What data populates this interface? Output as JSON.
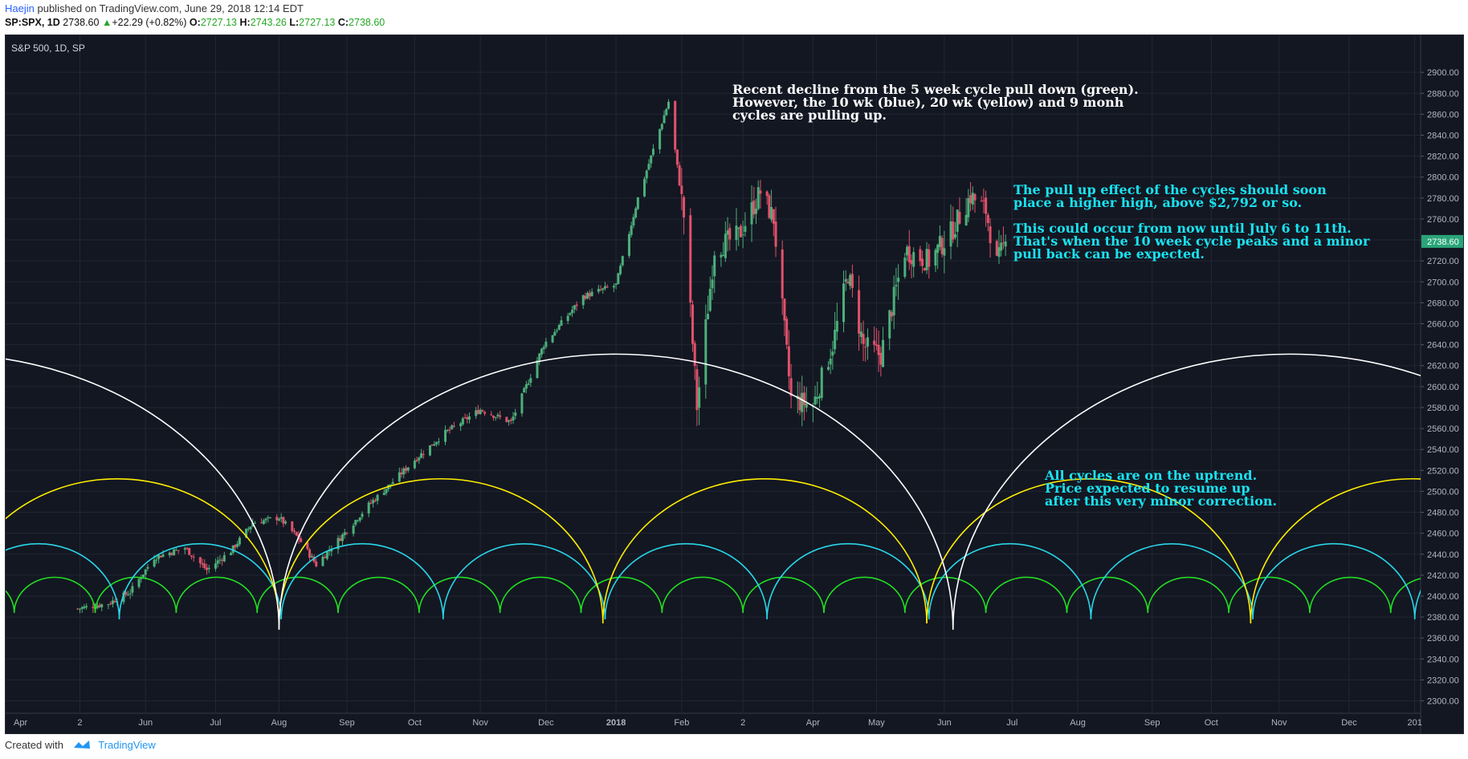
{
  "header": {
    "author": "Haejin",
    "published_text": "published on TradingView.com, June 29, 2018 12:14 EDT",
    "symbol": "SP:SPX, 1D",
    "price": "2738.60",
    "change_arrow": "▲",
    "change": "+22.29 (+0.82%)",
    "o_label": "O:",
    "o_value": "2727.13",
    "h_label": "H:",
    "h_value": "2743.26",
    "l_label": "L:",
    "l_value": "2727.13",
    "c_label": "C:",
    "c_value": "2738.60"
  },
  "legend": "S&P 500, 1D, SP",
  "footer": {
    "created_with": "Created with",
    "brand": "TradingView"
  },
  "annotations": {
    "top": "Recent decline from the 5 week cycle pull down (green).\nHowever, the 10 wk (blue), 20 wk (yellow) and 9 monh\ncycles are pulling up.",
    "middle": "The pull up effect of the cycles should soon\nplace a higher high, above $2,792 or so.\n\nThis could occur from now until July 6 to 11th.\nThat's when the 10 week cycle peaks and a minor\npull back can be expected.",
    "bottom": "All cycles are on the uptrend.\nPrice expected to resume up\nafter this very minor correction."
  },
  "colors": {
    "background": "#131722",
    "up_candle": "#4caf7a",
    "down_candle": "#e0526a",
    "cycle_5wk": "#22dd22",
    "cycle_10wk": "#29d6e8",
    "cycle_20wk": "#ffee00",
    "cycle_9mo": "#ffffff",
    "annotation_white": "#ffffff",
    "annotation_cyan": "#19e2f0",
    "last_price_tag": "#2aa57a"
  },
  "chart_data": {
    "type": "candlestick",
    "title": "S&P 500, 1D, SP",
    "y_axis": {
      "ticks": [
        2300,
        2320,
        2340,
        2360,
        2380,
        2400,
        2420,
        2440,
        2460,
        2480,
        2500,
        2520,
        2540,
        2560,
        2580,
        2600,
        2620,
        2640,
        2660,
        2680,
        2700,
        2720,
        2740,
        2760,
        2780,
        2800,
        2820,
        2840,
        2860,
        2880,
        2900
      ],
      "range": [
        2292,
        2907
      ],
      "last_price_label": "2738.60"
    },
    "x_axis": {
      "ticks": [
        {
          "label": "Apr",
          "index": 0
        },
        {
          "label": "2",
          "index": 1
        },
        {
          "label": "Jun",
          "index": 2
        },
        {
          "label": "Jul",
          "index": 3
        },
        {
          "label": "Aug",
          "index": 4
        },
        {
          "label": "Sep",
          "index": 5
        },
        {
          "label": "Oct",
          "index": 6
        },
        {
          "label": "Nov",
          "index": 7
        },
        {
          "label": "Dec",
          "index": 8
        },
        {
          "label": "2018",
          "index": 9,
          "bold": true
        },
        {
          "label": "Feb",
          "index": 10
        },
        {
          "label": "2",
          "index": 11
        },
        {
          "label": "Apr",
          "index": 12
        },
        {
          "label": "May",
          "index": 13
        },
        {
          "label": "Jun",
          "index": 14
        },
        {
          "label": "Jul",
          "index": 15
        },
        {
          "label": "Aug",
          "index": 16
        },
        {
          "label": "Sep",
          "index": 17
        },
        {
          "label": "Oct",
          "index": 18
        },
        {
          "label": "Nov",
          "index": 19
        },
        {
          "label": "Dec",
          "index": 20
        },
        {
          "label": "201",
          "index": 21
        }
      ]
    },
    "price_path": [
      [
        "2017-05-01",
        2388
      ],
      [
        "2017-05-15",
        2393
      ],
      [
        "2017-05-25",
        2404
      ],
      [
        "2017-06-05",
        2437
      ],
      [
        "2017-06-19",
        2446
      ],
      [
        "2017-06-29",
        2425
      ],
      [
        "2017-07-10",
        2443
      ],
      [
        "2017-07-20",
        2470
      ],
      [
        "2017-08-01",
        2475
      ],
      [
        "2017-08-10",
        2455
      ],
      [
        "2017-08-18",
        2430
      ],
      [
        "2017-08-30",
        2458
      ],
      [
        "2017-09-11",
        2487
      ],
      [
        "2017-09-20",
        2505
      ],
      [
        "2017-10-02",
        2530
      ],
      [
        "2017-10-16",
        2556
      ],
      [
        "2017-11-01",
        2578
      ],
      [
        "2017-11-15",
        2566
      ],
      [
        "2017-11-30",
        2640
      ],
      [
        "2017-12-18",
        2686
      ],
      [
        "2018-01-02",
        2697
      ],
      [
        "2018-01-12",
        2780
      ],
      [
        "2018-01-26",
        2872
      ],
      [
        "2018-02-02",
        2763
      ],
      [
        "2018-02-08",
        2581
      ],
      [
        "2018-02-16",
        2732
      ],
      [
        "2018-02-27",
        2744
      ],
      [
        "2018-03-09",
        2786
      ],
      [
        "2018-03-15",
        2760
      ],
      [
        "2018-03-23",
        2588
      ],
      [
        "2018-04-02",
        2582
      ],
      [
        "2018-04-11",
        2640
      ],
      [
        "2018-04-18",
        2708
      ],
      [
        "2018-04-25",
        2639
      ],
      [
        "2018-05-03",
        2630
      ],
      [
        "2018-05-14",
        2730
      ],
      [
        "2018-05-25",
        2720
      ],
      [
        "2018-06-04",
        2747
      ],
      [
        "2018-06-13",
        2782
      ],
      [
        "2018-06-20",
        2768
      ],
      [
        "2018-06-25",
        2717
      ],
      [
        "2018-06-29",
        2738.6
      ]
    ],
    "last_close": 2738.6,
    "series": [
      {
        "name": "5 week cycle (green)",
        "trough_interval_days": 37,
        "amplitude_points": 34,
        "first_trough": "2017-05-09"
      },
      {
        "name": "10 wk (blue)",
        "trough_interval_days": 74,
        "amplitude_points": 72,
        "first_trough": "2017-05-20"
      },
      {
        "name": "20 wk (yellow)",
        "trough_interval_days": 148,
        "amplitude_points": 138,
        "first_trough": "2017-08-01"
      },
      {
        "name": "9 monh (white)",
        "trough_interval_days": 308,
        "amplitude_points": 263,
        "first_trough": "2017-08-01"
      }
    ]
  }
}
